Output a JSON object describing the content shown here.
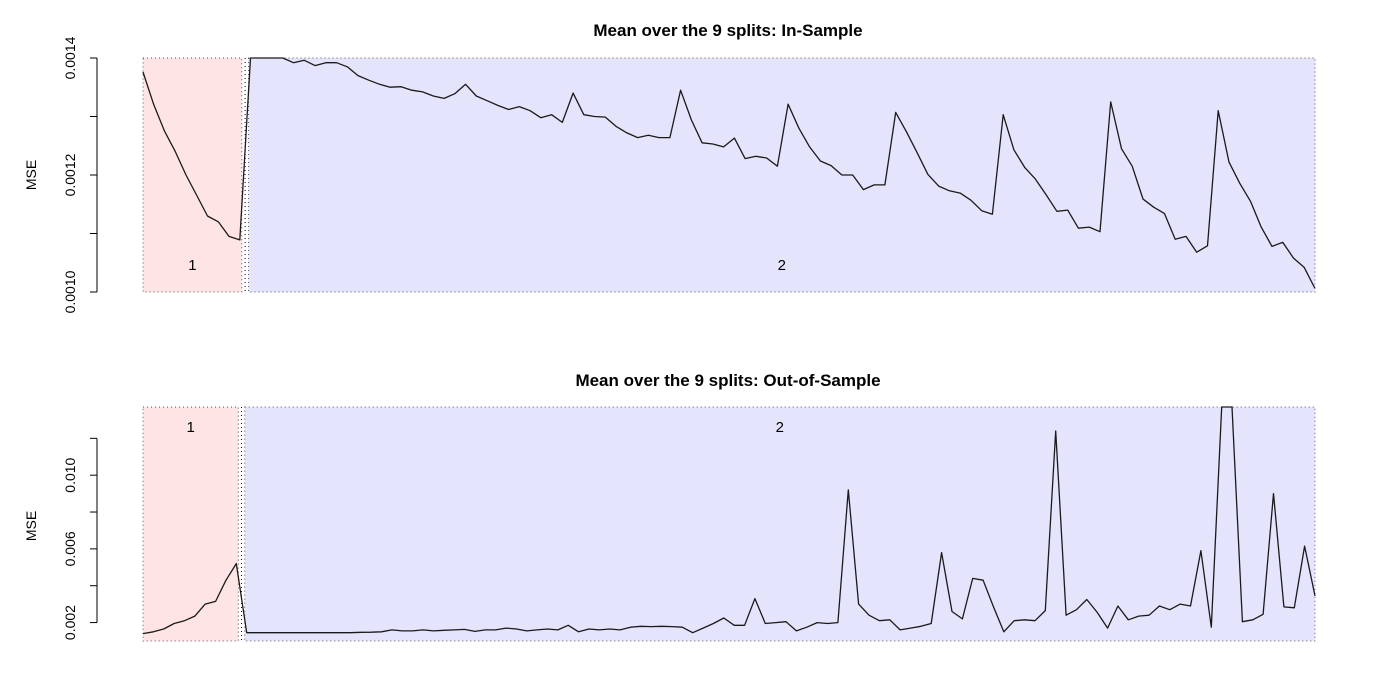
{
  "chart_data": [
    {
      "type": "line",
      "title": "Mean over the 9 splits: In-Sample",
      "xlabel": "",
      "ylabel": "MSE",
      "ylim": [
        0.001,
        0.0014
      ],
      "y_ticks": [
        0.001,
        0.0011,
        0.0012,
        0.0013,
        0.0014
      ],
      "y_tick_labels": [
        "0.0010",
        "",
        "0.0012",
        "",
        "0.0014"
      ],
      "regions": [
        {
          "label": "1",
          "x_range": [
            1,
            10
          ],
          "color": "#ffe4e6"
        },
        {
          "label": "2",
          "x_range": [
            11,
            120
          ],
          "color": "#e4e4fc"
        }
      ],
      "series": [
        {
          "values": [
            0.001376,
            0.00132,
            0.001275,
            0.00124,
            0.0012,
            0.001165,
            0.00113,
            0.00112,
            0.001095,
            0.001089,
            0.0014,
            0.001405,
            0.001401,
            0.001403,
            0.001392,
            0.001396,
            0.001387,
            0.001392,
            0.001392,
            0.001385,
            0.00137,
            0.001362,
            0.001355,
            0.00135,
            0.001351,
            0.001345,
            0.001342,
            0.001335,
            0.001331,
            0.001339,
            0.001355,
            0.001335,
            0.001327,
            0.001319,
            0.001312,
            0.001317,
            0.00131,
            0.001298,
            0.001303,
            0.00129,
            0.00134,
            0.001303,
            0.0013,
            0.001299,
            0.001283,
            0.001272,
            0.001264,
            0.001268,
            0.001264,
            0.001264,
            0.001345,
            0.001294,
            0.001255,
            0.001253,
            0.001248,
            0.001263,
            0.001228,
            0.001232,
            0.001229,
            0.001215,
            0.001321,
            0.00128,
            0.001248,
            0.001224,
            0.001216,
            0.0012,
            0.0012,
            0.001175,
            0.001183,
            0.001183,
            0.001307,
            0.001274,
            0.001238,
            0.001201,
            0.001181,
            0.001173,
            0.001169,
            0.001157,
            0.001139,
            0.001133,
            0.001303,
            0.001243,
            0.001213,
            0.001193,
            0.001166,
            0.001138,
            0.00114,
            0.001109,
            0.001111,
            0.001103,
            0.001325,
            0.001245,
            0.001215,
            0.001159,
            0.001145,
            0.001134,
            0.00109,
            0.001095,
            0.001068,
            0.001079,
            0.00131,
            0.001222,
            0.001186,
            0.001155,
            0.001111,
            0.001078,
            0.001085,
            0.001058,
            0.001042,
            0.001006
          ]
        }
      ]
    },
    {
      "type": "line",
      "title": "Mean over the 9 splits: Out-of-Sample",
      "xlabel": "",
      "ylabel": "MSE",
      "ylim": [
        0.001,
        0.0137
      ],
      "y_ticks": [
        0.002,
        0.004,
        0.006,
        0.008,
        0.01,
        0.012
      ],
      "y_tick_labels": [
        "0.002",
        "",
        "0.006",
        "",
        "0.010",
        ""
      ],
      "regions": [
        {
          "label": "1",
          "x_range": [
            1,
            10
          ],
          "color": "#ffe4e6"
        },
        {
          "label": "2",
          "x_range": [
            11,
            120
          ],
          "color": "#e4e4fc"
        }
      ],
      "series": [
        {
          "values": [
            0.0014,
            0.0015,
            0.00165,
            0.00195,
            0.0021,
            0.00235,
            0.003,
            0.00315,
            0.0043,
            0.0052,
            0.00145,
            0.00145,
            0.00145,
            0.00145,
            0.00145,
            0.00145,
            0.00145,
            0.00145,
            0.00145,
            0.00145,
            0.00145,
            0.00147,
            0.00148,
            0.0015,
            0.0016,
            0.00155,
            0.00155,
            0.0016,
            0.00155,
            0.00158,
            0.0016,
            0.00163,
            0.00152,
            0.0016,
            0.0016,
            0.0017,
            0.00165,
            0.00155,
            0.0016,
            0.00165,
            0.0016,
            0.00185,
            0.0015,
            0.00165,
            0.0016,
            0.00165,
            0.0016,
            0.00175,
            0.0018,
            0.00178,
            0.0018,
            0.00178,
            0.00175,
            0.00145,
            0.0017,
            0.00195,
            0.00225,
            0.00185,
            0.00185,
            0.0033,
            0.00195,
            0.002,
            0.00205,
            0.00155,
            0.00175,
            0.002,
            0.00195,
            0.002,
            0.0092,
            0.003,
            0.0024,
            0.0021,
            0.00215,
            0.0016,
            0.0017,
            0.0018,
            0.00195,
            0.0058,
            0.0026,
            0.0022,
            0.0044,
            0.0043,
            0.00285,
            0.0015,
            0.0021,
            0.00215,
            0.0021,
            0.00265,
            0.0124,
            0.0024,
            0.0027,
            0.00325,
            0.00255,
            0.0017,
            0.0029,
            0.00215,
            0.00235,
            0.0024,
            0.0029,
            0.0027,
            0.003,
            0.0029,
            0.0059,
            0.00175,
            0.0137,
            0.0137,
            0.00205,
            0.00215,
            0.00245,
            0.009,
            0.00285,
            0.0028,
            0.00615,
            0.00345
          ]
        }
      ]
    }
  ]
}
